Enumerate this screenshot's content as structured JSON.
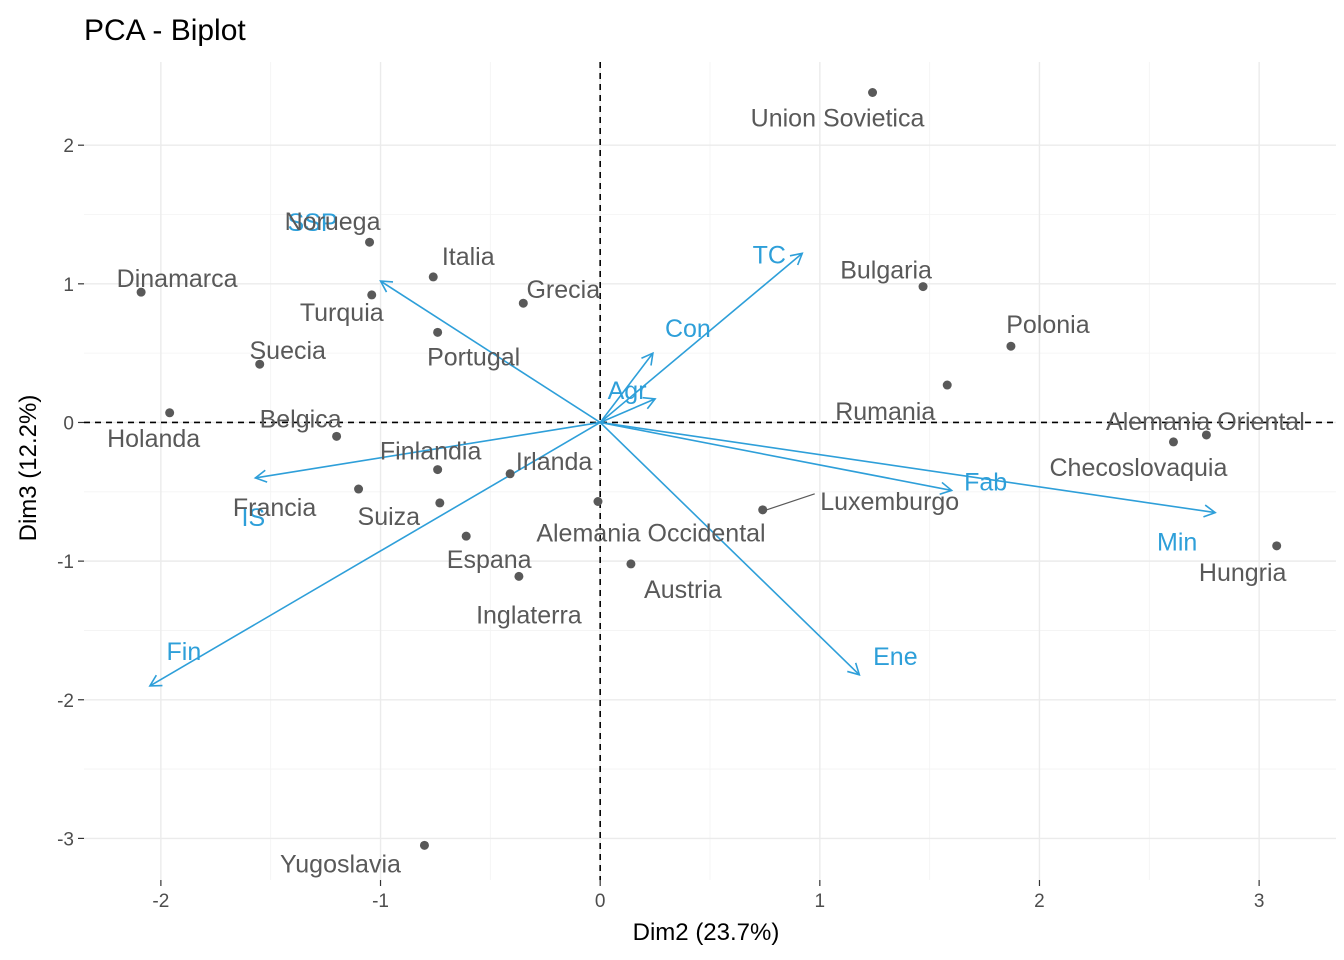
{
  "chart_data": {
    "type": "scatter",
    "title": "PCA - Biplot",
    "xlabel": "Dim2 (23.7%)",
    "ylabel": "Dim3 (12.2%)",
    "xlim": [
      -2.35,
      3.35
    ],
    "ylim": [
      -3.3,
      2.6
    ],
    "x_ticks": [
      -2,
      -1,
      0,
      1,
      2,
      3
    ],
    "y_ticks": [
      -3,
      -2,
      -1,
      0,
      1,
      2
    ],
    "grid": true,
    "reference_lines": {
      "x": 0,
      "y": 0,
      "style": "dashed"
    },
    "colors": {
      "individuals": "#595959",
      "variables": "#2e9fd9"
    },
    "individuals": [
      {
        "name": "Union Sovietica",
        "x": 1.24,
        "y": 2.38
      },
      {
        "name": "Noruega",
        "x": -1.05,
        "y": 1.3
      },
      {
        "name": "Italia",
        "x": -0.76,
        "y": 1.05
      },
      {
        "name": "Dinamarca",
        "x": -2.09,
        "y": 0.94
      },
      {
        "name": "Grecia",
        "x": -0.35,
        "y": 0.86
      },
      {
        "name": "Turquia",
        "x": -1.04,
        "y": 0.92
      },
      {
        "name": "Portugal",
        "x": -0.74,
        "y": 0.65
      },
      {
        "name": "Suecia",
        "x": -1.55,
        "y": 0.42
      },
      {
        "name": "Bulgaria",
        "x": 1.47,
        "y": 0.98
      },
      {
        "name": "Polonia",
        "x": 1.87,
        "y": 0.55
      },
      {
        "name": "Rumania",
        "x": 1.58,
        "y": 0.27
      },
      {
        "name": "Holanda",
        "x": -1.96,
        "y": 0.07
      },
      {
        "name": "Belgica",
        "x": -1.2,
        "y": -0.1
      },
      {
        "name": "Francia",
        "x": -1.1,
        "y": -0.48
      },
      {
        "name": "Finlandia",
        "x": -0.74,
        "y": -0.34
      },
      {
        "name": "Irlanda",
        "x": -0.41,
        "y": -0.37
      },
      {
        "name": "Suiza",
        "x": -0.73,
        "y": -0.58
      },
      {
        "name": "Espana",
        "x": -0.61,
        "y": -0.82
      },
      {
        "name": "Alemania Occidental",
        "x": -0.01,
        "y": -0.57
      },
      {
        "name": "Inglaterra",
        "x": -0.37,
        "y": -1.11
      },
      {
        "name": "Austria",
        "x": 0.14,
        "y": -1.02
      },
      {
        "name": "Luxemburgo",
        "x": 0.74,
        "y": -0.63
      },
      {
        "name": "Alemania Oriental",
        "x": 2.76,
        "y": -0.09
      },
      {
        "name": "Checoslovaquia",
        "x": 2.61,
        "y": -0.14
      },
      {
        "name": "Hungria",
        "x": 3.08,
        "y": -0.89
      },
      {
        "name": "Yugoslavia",
        "x": -0.8,
        "y": -3.05
      }
    ],
    "variables": [
      {
        "name": "TC",
        "x": 0.92,
        "y": 1.22
      },
      {
        "name": "SSP",
        "x": -1.0,
        "y": 1.02
      },
      {
        "name": "Con",
        "x": 0.24,
        "y": 0.5
      },
      {
        "name": "Agr",
        "x": 0.25,
        "y": 0.17
      },
      {
        "name": "IS",
        "x": -1.57,
        "y": -0.4
      },
      {
        "name": "Fab",
        "x": 1.6,
        "y": -0.49
      },
      {
        "name": "Min",
        "x": 2.8,
        "y": -0.65
      },
      {
        "name": "Ene",
        "x": 1.18,
        "y": -1.82
      },
      {
        "name": "Fin",
        "x": -2.05,
        "y": -1.9
      }
    ]
  }
}
